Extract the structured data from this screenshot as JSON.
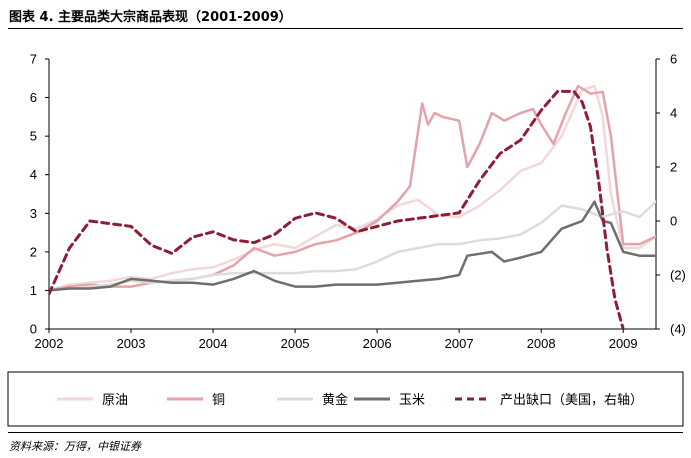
{
  "header": {
    "title": "图表 4. 主要品类大宗商品表现（2001-2009）",
    "source": "资料来源：万得，中银证券"
  },
  "chart_data": {
    "type": "line",
    "title": "图表 4. 主要品类大宗商品表现（2001-2009）",
    "xlabel": "",
    "ylabel": "",
    "xlim": [
      2002,
      2009.4
    ],
    "ylim": [
      0,
      7
    ],
    "y2lim": [
      -4,
      6
    ],
    "x_ticks": [
      "2002",
      "2003",
      "2004",
      "2005",
      "2006",
      "2007",
      "2008",
      "2009"
    ],
    "y_ticks": [
      "0",
      "1",
      "2",
      "3",
      "4",
      "5",
      "6",
      "7"
    ],
    "y2_ticks": [
      "(4)",
      "(2)",
      "0",
      "2",
      "4",
      "6"
    ],
    "grid": false,
    "legend_position": "bottom",
    "series": [
      {
        "name": "原油",
        "axis": "left",
        "color": "#f2d8da",
        "style": "solid",
        "x": [
          2002,
          2002.25,
          2002.5,
          2002.75,
          2003,
          2003.25,
          2003.5,
          2003.75,
          2004,
          2004.25,
          2004.5,
          2004.75,
          2005,
          2005.25,
          2005.5,
          2005.75,
          2006,
          2006.25,
          2006.5,
          2006.75,
          2007,
          2007.25,
          2007.5,
          2007.75,
          2008,
          2008.25,
          2008.5,
          2008.65,
          2008.75,
          2008.85,
          2009,
          2009.2,
          2009.4
        ],
        "y": [
          1.0,
          1.15,
          1.2,
          1.25,
          1.35,
          1.3,
          1.45,
          1.55,
          1.6,
          1.8,
          2.05,
          2.2,
          2.1,
          2.4,
          2.7,
          2.6,
          2.85,
          3.2,
          3.35,
          2.95,
          2.9,
          3.2,
          3.6,
          4.1,
          4.3,
          5.0,
          6.2,
          6.3,
          5.5,
          3.5,
          2.1,
          2.1,
          2.4
        ]
      },
      {
        "name": "铜",
        "axis": "left",
        "color": "#e5a2a9",
        "style": "solid",
        "x": [
          2002,
          2002.25,
          2002.5,
          2002.75,
          2003,
          2003.25,
          2003.5,
          2003.75,
          2004,
          2004.25,
          2004.5,
          2004.75,
          2005,
          2005.25,
          2005.5,
          2005.75,
          2006,
          2006.25,
          2006.4,
          2006.55,
          2006.62,
          2006.7,
          2006.8,
          2007,
          2007.1,
          2007.25,
          2007.4,
          2007.55,
          2007.75,
          2007.9,
          2008,
          2008.15,
          2008.3,
          2008.45,
          2008.6,
          2008.75,
          2008.85,
          2009,
          2009.2,
          2009.4
        ],
        "y": [
          1.0,
          1.1,
          1.15,
          1.1,
          1.1,
          1.2,
          1.25,
          1.3,
          1.4,
          1.65,
          2.1,
          1.9,
          2.0,
          2.2,
          2.3,
          2.5,
          2.8,
          3.3,
          3.7,
          5.85,
          5.3,
          5.6,
          5.5,
          5.4,
          4.2,
          4.8,
          5.6,
          5.4,
          5.6,
          5.7,
          5.3,
          4.8,
          5.6,
          6.3,
          6.1,
          6.15,
          5.0,
          2.2,
          2.2,
          2.4
        ]
      },
      {
        "name": "黄金",
        "axis": "left",
        "color": "#dcdcdc",
        "style": "solid",
        "x": [
          2002,
          2002.25,
          2002.5,
          2002.75,
          2003,
          2003.25,
          2003.5,
          2003.75,
          2004,
          2004.25,
          2004.5,
          2004.75,
          2005,
          2005.25,
          2005.5,
          2005.75,
          2006,
          2006.25,
          2006.5,
          2006.75,
          2007,
          2007.25,
          2007.5,
          2007.75,
          2008,
          2008.25,
          2008.5,
          2008.75,
          2008.9,
          2009,
          2009.2,
          2009.4
        ],
        "y": [
          1.0,
          1.05,
          1.1,
          1.15,
          1.25,
          1.2,
          1.25,
          1.3,
          1.4,
          1.45,
          1.45,
          1.45,
          1.45,
          1.5,
          1.5,
          1.55,
          1.75,
          2.0,
          2.1,
          2.2,
          2.2,
          2.3,
          2.35,
          2.45,
          2.75,
          3.2,
          3.1,
          2.9,
          3.0,
          3.05,
          2.9,
          3.3
        ]
      },
      {
        "name": "玉米",
        "axis": "left",
        "color": "#6e6e6e",
        "style": "solid",
        "x": [
          2002,
          2002.25,
          2002.5,
          2002.75,
          2003,
          2003.25,
          2003.5,
          2003.75,
          2004,
          2004.25,
          2004.5,
          2004.75,
          2005,
          2005.25,
          2005.5,
          2005.75,
          2006,
          2006.25,
          2006.5,
          2006.75,
          2007,
          2007.1,
          2007.25,
          2007.4,
          2007.55,
          2007.75,
          2008,
          2008.25,
          2008.5,
          2008.65,
          2008.75,
          2008.85,
          2009,
          2009.2,
          2009.4
        ],
        "y": [
          1.0,
          1.05,
          1.05,
          1.1,
          1.3,
          1.25,
          1.2,
          1.2,
          1.15,
          1.3,
          1.5,
          1.25,
          1.1,
          1.1,
          1.15,
          1.15,
          1.15,
          1.2,
          1.25,
          1.3,
          1.4,
          1.9,
          1.95,
          2.0,
          1.75,
          1.85,
          2.0,
          2.6,
          2.8,
          3.3,
          2.8,
          2.75,
          2.0,
          1.9,
          1.9
        ]
      },
      {
        "name": "产出缺口（美国，右轴）",
        "axis": "right",
        "color": "#8e1e35",
        "style": "dashed",
        "x": [
          2002,
          2002.25,
          2002.5,
          2002.75,
          2003,
          2003.25,
          2003.5,
          2003.75,
          2004,
          2004.25,
          2004.5,
          2004.75,
          2005,
          2005.25,
          2005.5,
          2005.75,
          2006,
          2006.25,
          2006.5,
          2006.75,
          2007,
          2007.25,
          2007.5,
          2007.75,
          2008,
          2008.2,
          2008.4,
          2008.5,
          2008.6,
          2008.7,
          2008.8,
          2008.9,
          2009
        ],
        "y": [
          -2.7,
          -1.0,
          0.0,
          -0.1,
          -0.2,
          -0.9,
          -1.2,
          -0.6,
          -0.4,
          -0.7,
          -0.8,
          -0.5,
          0.1,
          0.3,
          0.1,
          -0.4,
          -0.2,
          0.0,
          0.1,
          0.2,
          0.3,
          1.5,
          2.5,
          3.0,
          4.1,
          4.8,
          4.8,
          4.4,
          3.5,
          1.5,
          -1.0,
          -2.9,
          -4.0
        ]
      }
    ]
  }
}
